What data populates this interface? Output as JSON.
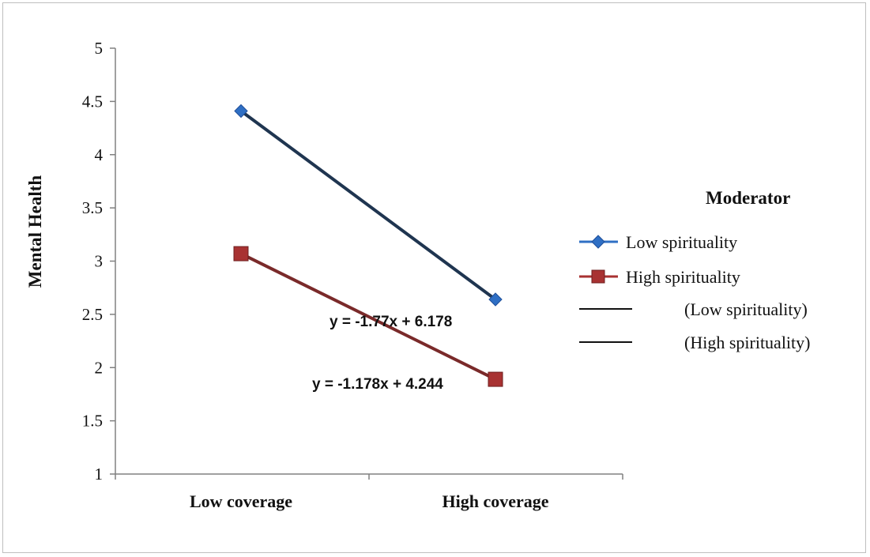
{
  "chart_data": {
    "type": "line",
    "title": "",
    "xlabel": "",
    "ylabel": "Mental Health",
    "categories": [
      "Low coverage",
      "High coverage"
    ],
    "ylim": [
      1,
      5
    ],
    "yticks": [
      "1",
      "1.5",
      "2",
      "2.5",
      "3",
      "3.5",
      "4",
      "4.5",
      "5"
    ],
    "grid": false,
    "legend_title": "Moderator",
    "legend_position": "right",
    "series": [
      {
        "name": "Low spirituality",
        "values": [
          4.41,
          2.64
        ],
        "color": "#2f6fc4",
        "line_color": "#1f3550",
        "marker": "diamond"
      },
      {
        "name": "High spirituality",
        "values": [
          3.07,
          1.89
        ],
        "color": "#a83232",
        "line_color": "#7a2a2a",
        "marker": "square"
      }
    ],
    "trendlines": [
      {
        "legend": "(Low spirituality)",
        "equation": "y = -1.77x + 6.178"
      },
      {
        "legend": "(High spirituality)",
        "equation": "y = -1.178x + 4.244"
      }
    ]
  }
}
